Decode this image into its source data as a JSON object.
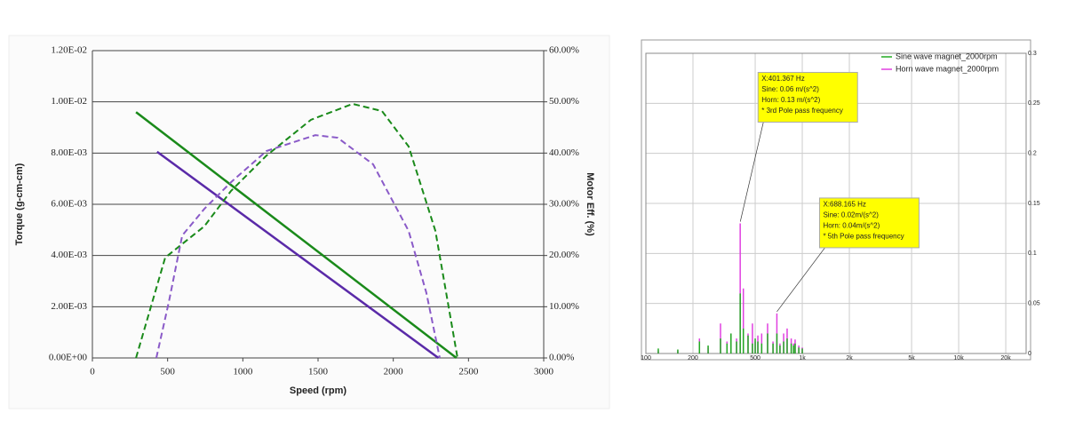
{
  "chart_data": [
    {
      "type": "line",
      "xlabel": "Speed (rpm)",
      "ylabel": "Torque (g-cm-cm)",
      "y2label": "Motor Eff. (%)",
      "xlim": [
        0,
        3000
      ],
      "xticks": [
        0,
        500,
        1000,
        1500,
        2000,
        2500,
        3000
      ],
      "ylim": [
        0,
        0.012
      ],
      "yticks": [
        {
          "value": 0,
          "label": "0.00E+00"
        },
        {
          "value": 0.002,
          "label": "2.00E-03"
        },
        {
          "value": 0.004,
          "label": "4.00E-03"
        },
        {
          "value": 0.006,
          "label": "6.00E-03"
        },
        {
          "value": 0.008,
          "label": "8.00E-03"
        },
        {
          "value": 0.01,
          "label": "1.00E-02"
        },
        {
          "value": 0.012,
          "label": "1.20E-02"
        }
      ],
      "y2lim": [
        0,
        60
      ],
      "y2ticks": [
        {
          "value": 0,
          "label": "0.00%"
        },
        {
          "value": 10,
          "label": "10.00%"
        },
        {
          "value": 20,
          "label": "20.00%"
        },
        {
          "value": 30,
          "label": "30.00%"
        },
        {
          "value": 40,
          "label": "40.00%"
        },
        {
          "value": 50,
          "label": "50.00%"
        },
        {
          "value": 60,
          "label": "60.00%"
        }
      ],
      "grid": true,
      "series": [
        {
          "color": "#1a8a1a",
          "dash": false,
          "axis": "y",
          "x": [
            290,
            2420
          ],
          "values": [
            0.0096,
            0
          ]
        },
        {
          "color": "#5a2aa8",
          "dash": false,
          "axis": "y",
          "x": [
            430,
            2300
          ],
          "values": [
            0.00805,
            0
          ]
        },
        {
          "color": "#1a8a1a",
          "dash": true,
          "axis": "y2",
          "x": [
            290,
            484,
            744,
            921,
            1157,
            1453,
            1730,
            1925,
            2102,
            2280,
            2427
          ],
          "values": [
            0,
            19.6,
            25.7,
            32.6,
            39.5,
            46.5,
            49.6,
            48.2,
            41.3,
            24.8,
            0
          ]
        },
        {
          "color": "#8a5ac8",
          "dash": true,
          "axis": "y2",
          "x": [
            425,
            508,
            597,
            744,
            921,
            1157,
            1482,
            1630,
            1866,
            2102,
            2220,
            2309
          ],
          "values": [
            0,
            10.9,
            23.9,
            29.1,
            34.3,
            40.4,
            43.5,
            43,
            37.8,
            24.8,
            12.7,
            0
          ]
        }
      ]
    },
    {
      "type": "stem",
      "xlog": true,
      "xlim": [
        100,
        27000
      ],
      "xticks": [
        100,
        200,
        500,
        {
          "value": 1000,
          "label": "1k"
        },
        {
          "value": 2000,
          "label": "2k"
        },
        {
          "value": 5000,
          "label": "5k"
        },
        {
          "value": 10000,
          "label": "10k"
        },
        {
          "value": 20000,
          "label": "20k"
        }
      ],
      "ylim": [
        0,
        0.3
      ],
      "yticks": [
        0,
        0.05,
        0.1,
        0.15,
        0.2,
        0.25,
        0.3
      ],
      "grid": true,
      "legend": "upper right",
      "x": [
        120,
        160,
        220,
        250,
        300,
        330,
        350,
        380,
        401,
        420,
        450,
        480,
        500,
        520,
        550,
        600,
        650,
        688,
        720,
        760,
        800,
        850,
        880,
        900,
        950,
        1000
      ],
      "series": [
        {
          "name": "Sine wave magnet_2000rpm",
          "color": "#22aa22",
          "values": [
            0.005,
            0.004,
            0.012,
            0.008,
            0.015,
            0.01,
            0.02,
            0.012,
            0.06,
            0.025,
            0.018,
            0.01,
            0.015,
            0.012,
            0.01,
            0.02,
            0.01,
            0.02,
            0.008,
            0.012,
            0.015,
            0.01,
            0.008,
            0.01,
            0.006,
            0.005
          ]
        },
        {
          "name": "Horn wave magnet_2000rpm",
          "color": "#e040e0",
          "values": [
            0.003,
            0.003,
            0.015,
            0.006,
            0.03,
            0.012,
            0.02,
            0.015,
            0.13,
            0.065,
            0.02,
            0.03,
            0.012,
            0.018,
            0.02,
            0.03,
            0.012,
            0.04,
            0.01,
            0.02,
            0.025,
            0.015,
            0.01,
            0.014,
            0.008,
            0.006
          ]
        }
      ],
      "annotations": [
        {
          "x": 401.367,
          "y": 0.13,
          "lines": [
            "X:401.367 Hz",
            "Sine:  0.06 m/(s^2)",
            "Horn:  0.13 m/(s^2)",
            "* 3rd Pole pass frequency"
          ]
        },
        {
          "x": 688.165,
          "y": 0.04,
          "lines": [
            "X:688.165 Hz",
            "Sine:  0.02m/(s^2)",
            "Horn:  0.04m/(s^2)",
            "* 5th Pole pass frequency"
          ]
        }
      ]
    }
  ]
}
